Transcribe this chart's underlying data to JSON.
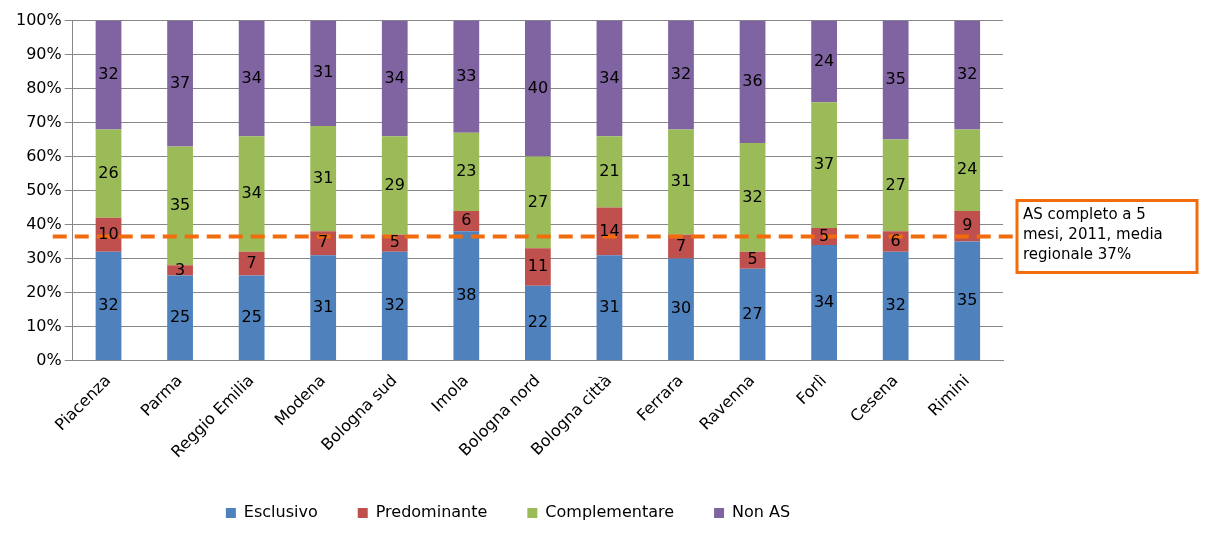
{
  "chart_data": {
    "type": "bar",
    "stacked": true,
    "categories": [
      "Piacenza",
      "Parma",
      "Reggio Emilia",
      "Modena",
      "Bologna sud",
      "Imola",
      "Bologna nord",
      "Bologna città",
      "Ferrara",
      "Ravenna",
      "Forlì",
      "Cesena",
      "Rimini"
    ],
    "series": [
      {
        "name": "Esclusivo",
        "color": "#4f81bd",
        "values": [
          32,
          25,
          25,
          31,
          32,
          38,
          22,
          31,
          30,
          27,
          34,
          32,
          35
        ]
      },
      {
        "name": "Predominante",
        "color": "#c0504d",
        "values": [
          10,
          3,
          7,
          7,
          5,
          6,
          11,
          14,
          7,
          5,
          5,
          6,
          9
        ]
      },
      {
        "name": "Complementare",
        "color": "#9bbb59",
        "values": [
          26,
          35,
          34,
          31,
          29,
          23,
          27,
          21,
          31,
          32,
          37,
          27,
          24
        ]
      },
      {
        "name": "Non AS",
        "color": "#8064a2",
        "values": [
          32,
          37,
          34,
          31,
          34,
          33,
          40,
          34,
          32,
          36,
          24,
          35,
          32
        ]
      }
    ],
    "ylim": [
      0,
      100
    ],
    "yticks": [
      {
        "value": 0,
        "label": "0%"
      },
      {
        "value": 10,
        "label": "10%"
      },
      {
        "value": 20,
        "label": "20%"
      },
      {
        "value": 30,
        "label": "30%"
      },
      {
        "value": 40,
        "label": "40%"
      },
      {
        "value": 50,
        "label": "50%"
      },
      {
        "value": 60,
        "label": "60%"
      },
      {
        "value": 70,
        "label": "70%"
      },
      {
        "value": 80,
        "label": "80%"
      },
      {
        "value": 90,
        "label": "90%"
      },
      {
        "value": 100,
        "label": "100%"
      }
    ],
    "grid": "y",
    "legend": "bottom",
    "data_labels": true,
    "ref_lines": [
      {
        "axis": "y",
        "value": 36.5,
        "label": "AS completo a 5 mesi, 2011, media regionale 37%",
        "color": "#f26c0d",
        "line_style": "dashed"
      }
    ]
  }
}
